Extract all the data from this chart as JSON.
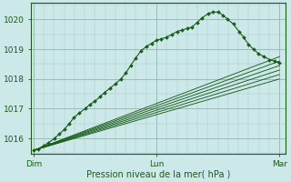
{
  "bg_color": "#cce8e8",
  "grid_major_color": "#99bbbb",
  "grid_minor_color": "#aacccc",
  "line_color": "#1a5c1a",
  "marker_color": "#1a5c1a",
  "xlabel": "Pression niveau de la mer( hPa )",
  "xlabel_color": "#1a5c1a",
  "tick_color": "#1a5c1a",
  "ylim": [
    1015.5,
    1020.55
  ],
  "yticks": [
    1016,
    1017,
    1018,
    1019,
    1020
  ],
  "xlim": [
    -0.02,
    2.05
  ],
  "xtick_labels": [
    "Dim",
    "Lun",
    "Mar"
  ],
  "xtick_positions": [
    0.0,
    1.0,
    2.0
  ],
  "forecast_lines": [
    {
      "x": [
        0.0,
        2.0
      ],
      "y": [
        1015.6,
        1018.6
      ]
    },
    {
      "x": [
        0.0,
        2.0
      ],
      "y": [
        1015.6,
        1018.3
      ]
    },
    {
      "x": [
        0.0,
        2.0
      ],
      "y": [
        1015.6,
        1018.15
      ]
    },
    {
      "x": [
        0.0,
        2.0
      ],
      "y": [
        1015.6,
        1018.0
      ]
    },
    {
      "x": [
        0.0,
        2.0
      ],
      "y": [
        1015.6,
        1018.45
      ]
    },
    {
      "x": [
        0.0,
        2.0
      ],
      "y": [
        1015.6,
        1018.75
      ]
    }
  ],
  "main_series_x": [
    0.0,
    0.04,
    0.08,
    0.12,
    0.17,
    0.21,
    0.25,
    0.29,
    0.33,
    0.37,
    0.42,
    0.46,
    0.5,
    0.54,
    0.58,
    0.625,
    0.67,
    0.71,
    0.75,
    0.79,
    0.83,
    0.875,
    0.92,
    0.96,
    1.0,
    1.04,
    1.08,
    1.125,
    1.17,
    1.21,
    1.25,
    1.29,
    1.33,
    1.37,
    1.42,
    1.46,
    1.5,
    1.54,
    1.58,
    1.625,
    1.67,
    1.71,
    1.75,
    1.79,
    1.83,
    1.875,
    1.92,
    1.96,
    2.0
  ],
  "main_series_y": [
    1015.6,
    1015.65,
    1015.75,
    1015.85,
    1016.0,
    1016.15,
    1016.3,
    1016.5,
    1016.7,
    1016.85,
    1017.0,
    1017.15,
    1017.25,
    1017.4,
    1017.55,
    1017.7,
    1017.85,
    1018.0,
    1018.2,
    1018.45,
    1018.7,
    1018.95,
    1019.1,
    1019.2,
    1019.3,
    1019.35,
    1019.4,
    1019.5,
    1019.6,
    1019.65,
    1019.7,
    1019.75,
    1019.9,
    1020.05,
    1020.2,
    1020.25,
    1020.25,
    1020.15,
    1020.0,
    1019.85,
    1019.6,
    1019.4,
    1019.15,
    1019.0,
    1018.85,
    1018.75,
    1018.65,
    1018.6,
    1018.55
  ]
}
